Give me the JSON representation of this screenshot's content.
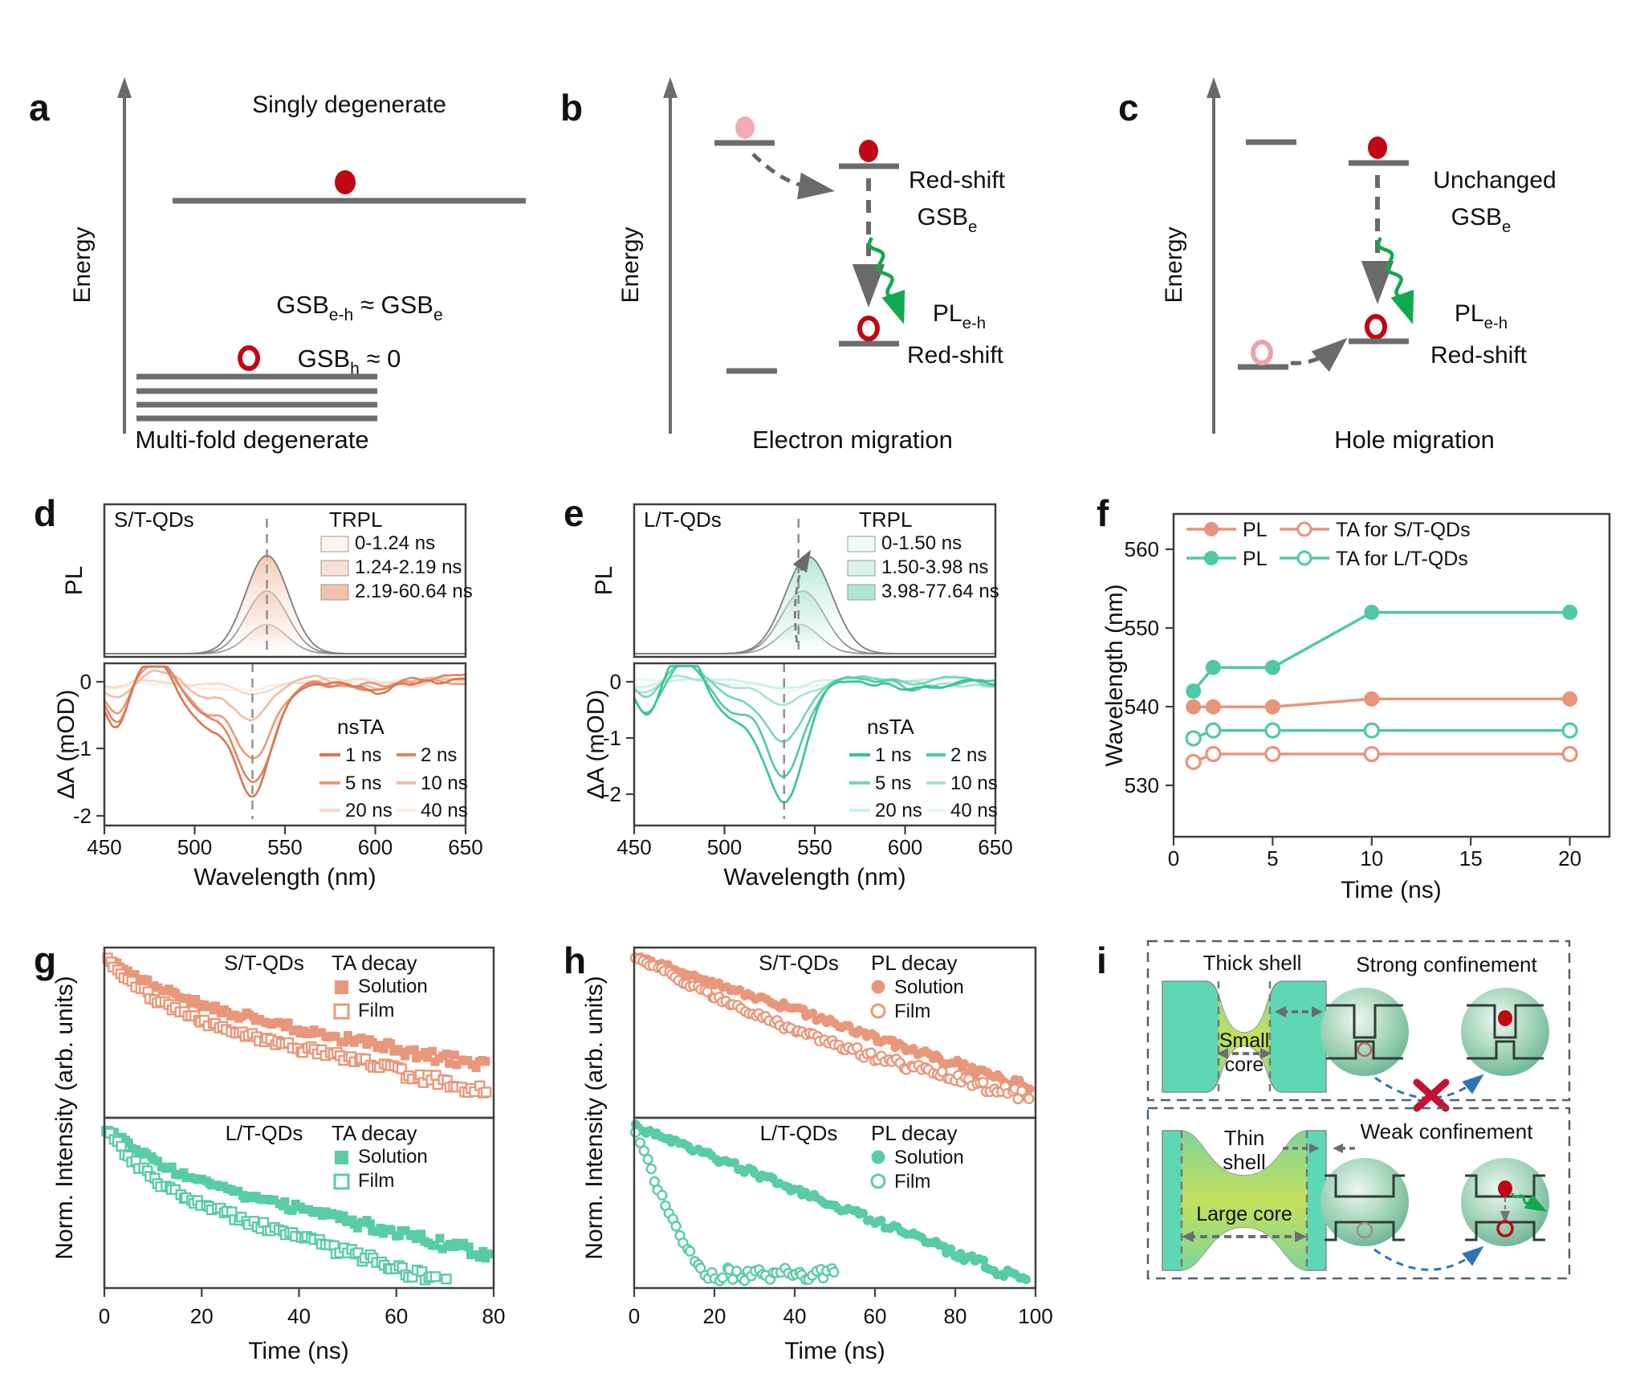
{
  "panels": {
    "a": {
      "label": "a",
      "energy_axis": "Energy",
      "top_title": "Singly degenerate",
      "eq1": "GSB[e-h] ≈ GSB[e]",
      "eq2": "GSB[h] ≈ 0",
      "bottom_title": "Multi-fold degenerate"
    },
    "b": {
      "label": "b",
      "energy_axis": "Energy",
      "label_redshift_top": "Red-shift",
      "label_gsb": "GSB[e]",
      "label_pl": "PL[e-h]",
      "label_redshift_bottom": "Red-shift",
      "caption": "Electron migration"
    },
    "c": {
      "label": "c",
      "energy_axis": "Energy",
      "label_unchanged": "Unchanged",
      "label_gsb": "GSB[e]",
      "label_pl": "PL[e-h]",
      "label_redshift": "Red-shift",
      "caption": "Hole migration"
    },
    "d": {
      "label": "d"
    },
    "e": {
      "label": "e"
    },
    "f": {
      "label": "f"
    },
    "g": {
      "label": "g"
    },
    "h": {
      "label": "h"
    },
    "i": {
      "label": "i",
      "top": {
        "shell_label": "Thick shell",
        "confinement_label": "Strong confinement",
        "core_line1": "Small",
        "core_line2": "core",
        "transfer_blocked": true
      },
      "bottom": {
        "shell_label_line1": "Thin",
        "shell_label_line2": "shell",
        "confinement_label": "Weak confinement",
        "core_label": "Large core",
        "transfer_blocked": false
      }
    }
  },
  "colors": {
    "salmon": "#E8977A",
    "teal": "#55CBA7",
    "red": "#C00714",
    "pink": "#F2ABB0",
    "green_arrow": "#11A94D",
    "blue_arrow": "#2E75B6",
    "cross_red": "#C41230",
    "gray": "#6c6c6c"
  },
  "chart_data": [
    {
      "id": "d",
      "type": "line",
      "title": "S/T-QDs",
      "xlabel": "Wavelength (nm)",
      "xlim": [
        450,
        650
      ],
      "xticks": [
        450,
        500,
        550,
        600,
        650
      ],
      "top": {
        "ylabel": "PL",
        "legend_title": "TRPL",
        "legend": [
          "0-1.24 ns",
          "1.24-2.19 ns",
          "2.19-60.64 ns"
        ],
        "swatches": [
          "#FDF4F0",
          "#F8DFD3",
          "#F2C2AB"
        ],
        "peaks": [
          {
            "center": 540,
            "height": 0.28,
            "sigma": 11
          },
          {
            "center": 540,
            "height": 0.6,
            "sigma": 11.5
          },
          {
            "center": 540,
            "height": 0.94,
            "sigma": 12
          }
        ],
        "peak_fill": "#F2C4AE",
        "dash_x": 540,
        "redshift_arrow": false
      },
      "bottom": {
        "ylabel": "ΔA (mOD)",
        "yticks": [
          "0",
          "-1",
          "-2"
        ],
        "ylim": [
          -2.15,
          0.28
        ],
        "legend_title": "nsTA",
        "legend": [
          "1 ns",
          "2 ns",
          "5 ns",
          "10 ns",
          "20 ns",
          "40 ns"
        ],
        "line_colors": [
          "#DC7450",
          "#E08663",
          "#E79B7C",
          "#EFBCA6",
          "#F6D9CA",
          "#FBEDE5"
        ],
        "gsb": {
          "center": 532,
          "sigma": 10.5
        },
        "depths": [
          1.7,
          1.52,
          1.1,
          0.55,
          0.16,
          0.07
        ],
        "features": [
          {
            "c": 457,
            "s": 6,
            "a": -0.36
          },
          {
            "c": 478,
            "s": 8,
            "a": 0.3
          },
          {
            "c": 506,
            "s": 10,
            "a": -0.3
          },
          {
            "c": 604,
            "s": 9,
            "a": -0.08
          }
        ],
        "dash_x": 532
      }
    },
    {
      "id": "e",
      "type": "line",
      "title": "L/T-QDs",
      "xlabel": "Wavelength (nm)",
      "xlim": [
        450,
        650
      ],
      "xticks": [
        450,
        500,
        550,
        600,
        650
      ],
      "top": {
        "ylabel": "PL",
        "legend_title": "TRPL",
        "legend": [
          "0-1.50 ns",
          "1.50-3.98 ns",
          "3.98-77.64 ns"
        ],
        "swatches": [
          "#F0FAF6",
          "#D9F3EA",
          "#AEE6D3"
        ],
        "peaks": [
          {
            "center": 541.5,
            "height": 0.28,
            "sigma": 11
          },
          {
            "center": 543.5,
            "height": 0.6,
            "sigma": 12
          },
          {
            "center": 546.5,
            "height": 0.93,
            "sigma": 13
          }
        ],
        "peak_fill": "#A9E3D0",
        "dash_x": 541,
        "redshift_arrow": true
      },
      "bottom": {
        "ylabel": "ΔA (mOD)",
        "yticks": [
          "0",
          "-1",
          "-2"
        ],
        "ylim": [
          -2.55,
          0.32
        ],
        "legend_title": "nsTA",
        "legend": [
          "1 ns",
          "2 ns",
          "5 ns",
          "10 ns",
          "20 ns",
          "40 ns"
        ],
        "line_colors": [
          "#35C39A",
          "#4FCBA6",
          "#74D5B8",
          "#A3E4D0",
          "#CBF0E3",
          "#E7F8F2"
        ],
        "gsb": {
          "center": 533,
          "sigma": 11
        },
        "depths": [
          2.05,
          1.6,
          1.08,
          0.38,
          0.18,
          0.08
        ],
        "features": [
          {
            "c": 457,
            "s": 6,
            "a": -0.3
          },
          {
            "c": 478,
            "s": 8,
            "a": 0.28
          },
          {
            "c": 505,
            "s": 10,
            "a": -0.28
          },
          {
            "c": 604,
            "s": 9,
            "a": -0.07
          }
        ],
        "dash_x": 533
      }
    },
    {
      "id": "f",
      "type": "line-scatter",
      "xlabel": "Time (ns)",
      "ylabel": "Wavelength (nm)",
      "xlim": [
        0,
        22
      ],
      "xticks": [
        0,
        5,
        10,
        15,
        20
      ],
      "ylim": [
        523.5,
        564.5
      ],
      "yticks": [
        560,
        550,
        540,
        530
      ],
      "x": [
        1,
        2,
        5,
        10,
        20
      ],
      "series": [
        {
          "name": "PL",
          "sample": "S/T-QDs",
          "marker": "filled",
          "color": "#E8937B",
          "values": [
            540,
            540,
            540,
            541,
            541
          ]
        },
        {
          "name": "TA for S/T-QDs",
          "sample": "S/T-QDs",
          "marker": "open",
          "color": "#E8937B",
          "values": [
            533,
            534,
            534,
            534,
            534
          ]
        },
        {
          "name": "PL",
          "sample": "L/T-QDs",
          "marker": "filled",
          "color": "#4FC9A5",
          "values": [
            542,
            545,
            545,
            552,
            552
          ]
        },
        {
          "name": "TA for L/T-QDs",
          "sample": "L/T-QDs",
          "marker": "open",
          "color": "#4FC9A5",
          "values": [
            536,
            537,
            537,
            537,
            537
          ]
        }
      ],
      "legend": {
        "row1": [
          "PL",
          "TA for S/T-QDs"
        ],
        "row2": [
          "PL",
          "TA for L/T-QDs"
        ]
      }
    },
    {
      "id": "g",
      "type": "scatter-decay",
      "xlabel": "Time (ns)",
      "xlim": [
        0,
        80
      ],
      "xticks": [
        0,
        20,
        40,
        60,
        80
      ],
      "ylabel": "Norm. Intensity (arb. units)",
      "ymin": 0.02,
      "marker": "square",
      "panels": [
        {
          "title": "S/T-QDs",
          "legend_title": "TA decay",
          "legend": [
            "Solution",
            "Film"
          ],
          "color": "#E8977A",
          "solution": {
            "taus": [
              8,
              42
            ],
            "weights": [
              0.6,
              0.4
            ]
          },
          "film": {
            "taus": [
              5.5,
              34
            ],
            "weights": [
              0.68,
              0.32
            ]
          }
        },
        {
          "title": "L/T-QDs",
          "legend_title": "TA decay",
          "legend": [
            "Solution",
            "Film"
          ],
          "color": "#58CBA7",
          "solution": {
            "taus": [
              6.5,
              34
            ],
            "weights": [
              0.6,
              0.4
            ]
          },
          "film": {
            "taus": [
              4.5,
              26
            ],
            "weights": [
              0.72,
              0.28
            ]
          }
        }
      ]
    },
    {
      "id": "h",
      "type": "scatter-decay",
      "xlabel": "Time (ns)",
      "xlim": [
        0,
        100
      ],
      "xticks": [
        0,
        20,
        40,
        60,
        80,
        100
      ],
      "ylabel": "Norm. Intensity (arb. units)",
      "ymin": 0.012,
      "marker": "circle",
      "panels": [
        {
          "title": "S/T-QDs",
          "legend_title": "PL decay",
          "legend": [
            "Solution",
            "Film"
          ],
          "color": "#E8977A",
          "solution": {
            "taus": [
              26
            ],
            "weights": [
              1
            ]
          },
          "film": {
            "taus": [
              14,
              40
            ],
            "weights": [
              0.8,
              0.2
            ]
          }
        },
        {
          "title": "L/T-QDs",
          "legend_title": "PL decay",
          "legend": [
            "Solution",
            "Film"
          ],
          "color": "#58CBA7",
          "solution": {
            "taus": [
              22
            ],
            "weights": [
              1
            ]
          },
          "film": {
            "taus": [
              2.8,
              7
            ],
            "weights": [
              0.85,
              0.15
            ],
            "tail_to": 50
          }
        }
      ]
    }
  ]
}
